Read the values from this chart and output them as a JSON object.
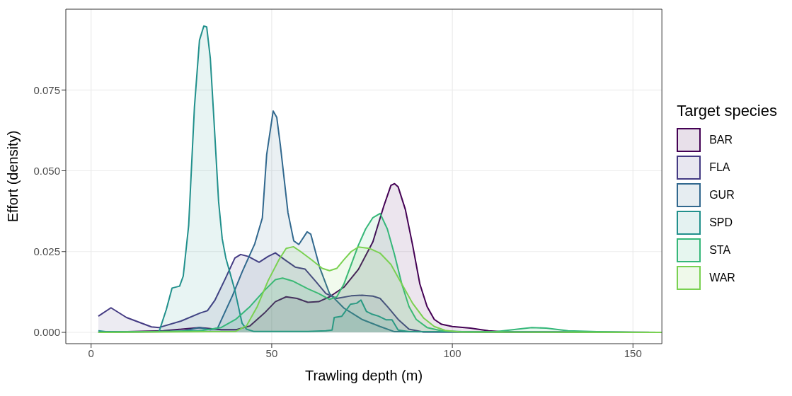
{
  "chart_data": {
    "type": "area",
    "xlabel": "Trawling depth (m)",
    "ylabel": "Effort (density)",
    "legend_title": "Target species",
    "legend": "right",
    "grid": true,
    "xlim": [
      -7,
      158
    ],
    "xticks": [
      0,
      50,
      100,
      150
    ],
    "ylim": [
      -0.0035,
      0.1
    ],
    "yticks": [
      {
        "value": 0,
        "label": "0.000"
      },
      {
        "value": 0.025,
        "label": "0.025"
      },
      {
        "value": 0.05,
        "label": "0.050"
      },
      {
        "value": 0.075,
        "label": "0.075"
      }
    ],
    "series": [
      {
        "name": "BAR",
        "color": "#440154",
        "x": [
          2,
          20,
          30,
          36,
          40,
          44,
          48,
          51,
          54,
          57,
          60,
          63,
          66,
          70,
          74,
          78,
          81,
          83,
          84,
          85,
          87,
          89,
          91,
          93,
          95,
          97,
          100,
          105,
          110,
          115,
          158
        ],
        "values": [
          0,
          0.0005,
          0.0015,
          0.0008,
          0.0008,
          0.002,
          0.006,
          0.0095,
          0.011,
          0.0105,
          0.0093,
          0.0095,
          0.011,
          0.014,
          0.0195,
          0.028,
          0.039,
          0.0455,
          0.046,
          0.045,
          0.038,
          0.027,
          0.015,
          0.008,
          0.004,
          0.0025,
          0.0018,
          0.0013,
          0.0005,
          0.0001,
          0
        ]
      },
      {
        "name": "FLA",
        "color": "#443a83",
        "x": [
          2,
          5.5,
          9.8,
          16.7,
          18.8,
          24.9,
          30.2,
          32.2,
          34.3,
          37.1,
          39.8,
          41.4,
          43.5,
          46.5,
          49,
          51,
          53.7,
          56.5,
          59.2,
          62,
          65,
          68,
          72,
          75,
          78,
          80,
          82,
          85,
          88,
          92,
          158
        ],
        "values": [
          0.005,
          0.0076,
          0.0046,
          0.0017,
          0.0015,
          0.0035,
          0.006,
          0.0067,
          0.01,
          0.0165,
          0.023,
          0.0241,
          0.0235,
          0.0217,
          0.0235,
          0.0246,
          0.0224,
          0.0202,
          0.0196,
          0.016,
          0.012,
          0.0105,
          0.0113,
          0.0115,
          0.0112,
          0.0105,
          0.008,
          0.004,
          0.001,
          0.0001,
          0
        ]
      },
      {
        "name": "GUR",
        "color": "#31688e",
        "x": [
          2,
          25,
          30,
          33,
          35,
          39.2,
          41.8,
          45.3,
          47.4,
          48.6,
          50.4,
          51.4,
          52.4,
          54.5,
          56.1,
          57.5,
          59.8,
          60.8,
          63.3,
          66,
          70,
          75,
          80,
          84,
          158
        ],
        "values": [
          0,
          0.0003,
          0.0015,
          0.0008,
          0.0013,
          0.0115,
          0.0187,
          0.0274,
          0.0354,
          0.055,
          0.0685,
          0.0665,
          0.0578,
          0.037,
          0.0283,
          0.0272,
          0.0311,
          0.0304,
          0.02,
          0.012,
          0.0075,
          0.004,
          0.0018,
          0.0002,
          0
        ]
      },
      {
        "name": "SPD",
        "color": "#21908c",
        "x": [
          2,
          4,
          18.8,
          20.8,
          22.4,
          24.5,
          25.5,
          27,
          28.6,
          30,
          31.2,
          32,
          33,
          34,
          35.3,
          36.3,
          37.3,
          39.8,
          41.8,
          43,
          45,
          60,
          65,
          66.7,
          67.3,
          69.4,
          71.8,
          73.5,
          74.7,
          76.2,
          77.6,
          79.6,
          81.6,
          83.3,
          85,
          88,
          158
        ],
        "values": [
          0.0005,
          0.0002,
          0.0002,
          0.007,
          0.0137,
          0.0143,
          0.0174,
          0.033,
          0.0696,
          0.0904,
          0.0948,
          0.0945,
          0.0848,
          0.0659,
          0.0404,
          0.0289,
          0.023,
          0.013,
          0.0028,
          0.001,
          0.0003,
          0.0003,
          0.0005,
          0.0007,
          0.0046,
          0.005,
          0.0087,
          0.009,
          0.01,
          0.0065,
          0.0057,
          0.005,
          0.0039,
          0.0039,
          0.0007,
          0.0002,
          0
        ]
      },
      {
        "name": "STA",
        "color": "#35b779",
        "x": [
          2,
          30,
          36,
          40,
          44,
          48,
          51,
          53,
          56,
          60,
          63,
          66,
          68,
          70,
          72,
          74,
          76,
          78,
          80,
          82,
          84,
          86,
          88,
          90,
          93,
          97,
          105,
          112,
          118,
          122,
          126,
          132,
          140,
          150,
          158
        ],
        "values": [
          0,
          0.0005,
          0.0015,
          0.004,
          0.008,
          0.013,
          0.0163,
          0.0168,
          0.0158,
          0.0135,
          0.012,
          0.0102,
          0.011,
          0.015,
          0.021,
          0.027,
          0.032,
          0.0355,
          0.0368,
          0.032,
          0.024,
          0.015,
          0.008,
          0.004,
          0.0015,
          0.0005,
          0.0001,
          0.0002,
          0.001,
          0.0015,
          0.0013,
          0.0005,
          0.0002,
          0,
          0
        ]
      },
      {
        "name": "WAR",
        "color": "#7ad151",
        "x": [
          2,
          40,
          43,
          46,
          49,
          52,
          54,
          56,
          58,
          61,
          64,
          66,
          68,
          70,
          72,
          74,
          77,
          80,
          83,
          86,
          89,
          92,
          95,
          98,
          102,
          158
        ],
        "values": [
          0,
          0.0003,
          0.002,
          0.008,
          0.016,
          0.0225,
          0.026,
          0.0265,
          0.025,
          0.0225,
          0.0198,
          0.0191,
          0.0198,
          0.0225,
          0.025,
          0.0264,
          0.026,
          0.0245,
          0.021,
          0.015,
          0.009,
          0.0045,
          0.0018,
          0.0006,
          0.0001,
          0
        ]
      }
    ]
  }
}
